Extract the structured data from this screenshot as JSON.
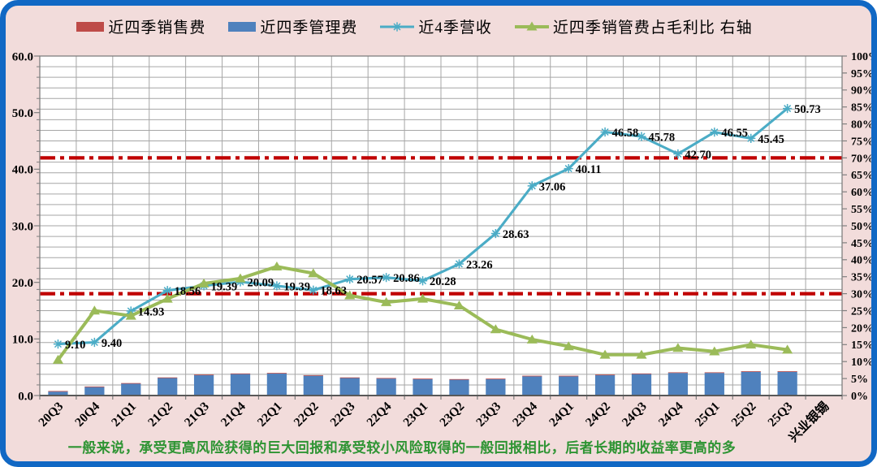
{
  "note": "一般来说，承受更高风险获得的巨大回报和承受较小风险取得的一般回报相比，后者长期的收益率更高的多",
  "colors": {
    "background": "#F2DCDB",
    "frame_border": "#1168C4",
    "plot_background": "#FFFFFF",
    "gridline": "#A6A6A6",
    "axis": "#7F7F7F",
    "reference_line": "#C00000",
    "note_text": "#2E9433",
    "label_text": "#000000"
  },
  "chart_data": {
    "type": "combo",
    "categories": [
      "20Q3",
      "20Q4",
      "21Q1",
      "21Q2",
      "21Q3",
      "21Q4",
      "22Q1",
      "22Q2",
      "22Q3",
      "22Q4",
      "23Q1",
      "23Q2",
      "23Q3",
      "23Q4",
      "24Q1",
      "24Q2",
      "24Q3",
      "24Q4",
      "25Q1",
      "25Q2",
      "25Q3"
    ],
    "extra_category": "兴业银锡",
    "left_axis": {
      "min": 0,
      "max": 60,
      "label_step": 10,
      "decimals": 1
    },
    "right_axis": {
      "min": 0,
      "max": 100,
      "label_step": 5,
      "suffix": "%"
    },
    "grid_intervals": 32,
    "legend_position": "top",
    "grid": true,
    "reference_lines": [
      {
        "axis": "right",
        "value": 70
      },
      {
        "axis": "right",
        "value": 30
      }
    ],
    "series": [
      {
        "name": "近四季销售费",
        "type": "bar",
        "axis": "left",
        "color": "#BE4B48",
        "values": [
          0.1,
          0.1,
          0.1,
          0.1,
          0.1,
          0.1,
          0.1,
          0.1,
          0.1,
          0.1,
          0.1,
          0.1,
          0.1,
          0.1,
          0.1,
          0.1,
          0.1,
          0.1,
          0.1,
          0.1,
          0.1
        ]
      },
      {
        "name": "近四季管理费",
        "type": "bar",
        "axis": "left",
        "color": "#4F81BD",
        "values": [
          0.7,
          1.5,
          2.1,
          3.1,
          3.6,
          3.8,
          3.9,
          3.5,
          3.1,
          3.0,
          2.9,
          2.8,
          2.9,
          3.4,
          3.4,
          3.6,
          3.8,
          4.0,
          4.0,
          4.2,
          4.2
        ]
      },
      {
        "name": "近4季营收",
        "type": "line",
        "marker": "asterisk",
        "axis": "left",
        "color": "#4BACC6",
        "show_labels": true,
        "values": [
          9.1,
          9.4,
          14.93,
          18.56,
          19.39,
          20.09,
          19.39,
          18.63,
          20.57,
          20.86,
          20.28,
          23.26,
          28.63,
          37.06,
          40.11,
          46.58,
          45.78,
          42.7,
          46.55,
          45.45,
          50.73
        ]
      },
      {
        "name": "近四季销管费占毛利比 右轴",
        "type": "line",
        "marker": "triangle",
        "axis": "right",
        "color": "#9BBB59",
        "show_labels": false,
        "values": [
          10.5,
          25,
          23.5,
          28.5,
          33,
          34.5,
          38,
          36,
          29.5,
          27.5,
          28.5,
          26.5,
          19.5,
          16.5,
          14.5,
          12,
          12,
          14,
          13,
          15,
          13.5
        ]
      }
    ]
  }
}
